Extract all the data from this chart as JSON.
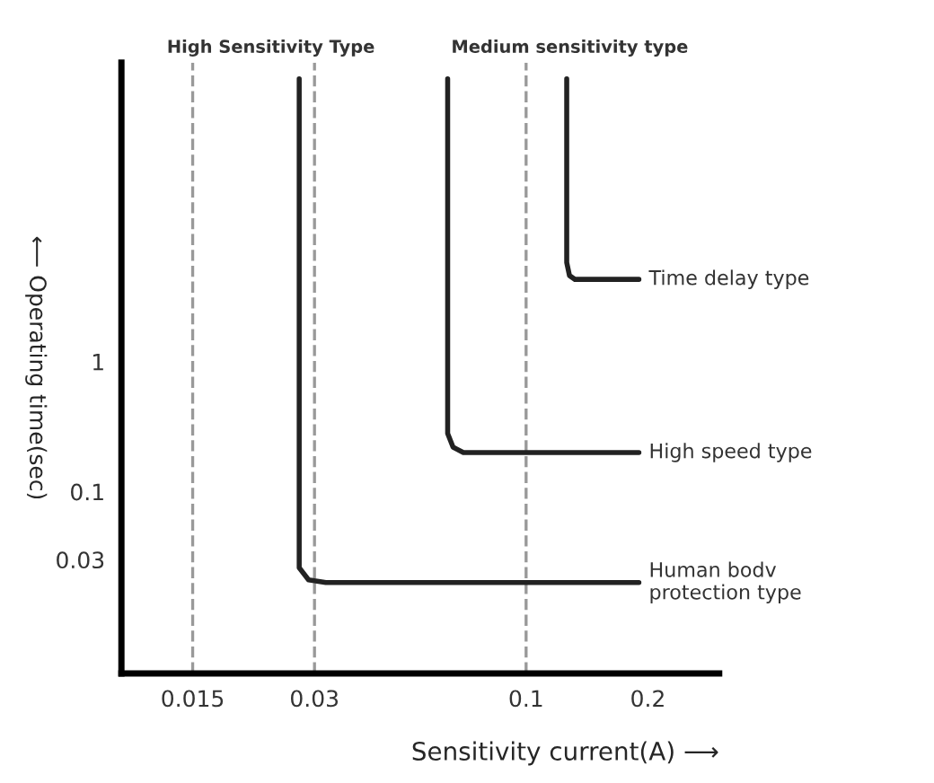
{
  "chart_data": {
    "type": "line",
    "xlabel": "Sensitivity current(A) ⟶",
    "ylabel": "⟵ Operating time(sec)",
    "annotations": [
      "High Sensitivity Type",
      "Medium sensitivity type"
    ],
    "series": [
      {
        "name": "Human bodv\nprotection type",
        "color": "#222222",
        "x": [
          0.0275,
          0.0275,
          0.029,
          0.032,
          0.19
        ],
        "values": [
          150,
          0.026,
          0.021,
          0.02,
          0.02
        ]
      },
      {
        "name": "High speed type",
        "color": "#222222",
        "x": [
          0.064,
          0.064,
          0.066,
          0.07,
          0.19
        ],
        "values": [
          150,
          0.28,
          0.22,
          0.2,
          0.2
        ]
      },
      {
        "name": "Time delay type",
        "color": "#222222",
        "x": [
          0.126,
          0.126,
          0.128,
          0.132,
          0.19
        ],
        "values": [
          150,
          5.8,
          4.6,
          4.3,
          4.3
        ]
      }
    ],
    "ref_lines": [
      {
        "axis": "x",
        "value": 0.015,
        "color": "#999999",
        "line_style": "dashed"
      },
      {
        "axis": "x",
        "value": 0.03,
        "color": "#999999",
        "line_style": "dashed"
      },
      {
        "axis": "x",
        "value": 0.1,
        "color": "#999999",
        "line_style": "dashed"
      }
    ],
    "xlim": [
      0.01,
      0.3
    ],
    "xticks": [
      0.015,
      0.03,
      0.1,
      0.2
    ],
    "ylim": [
      0.004,
      200
    ],
    "yticks": [
      0.03,
      0.1,
      1
    ],
    "log": "xy",
    "grid": false,
    "legend": false,
    "line_style": "solid",
    "marker": "none"
  }
}
